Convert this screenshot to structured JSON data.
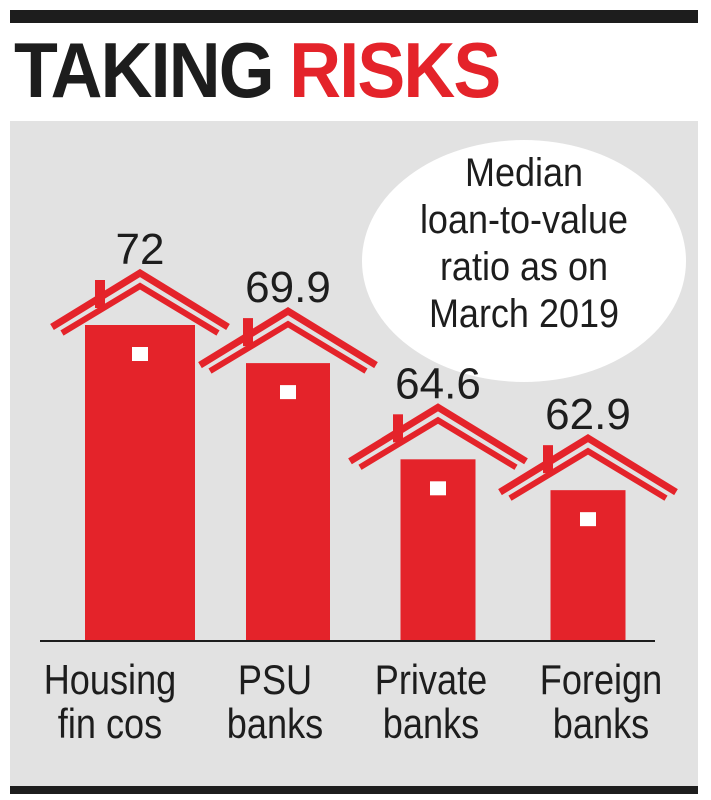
{
  "header": {
    "title_part1": "TAKING",
    "title_part2": "RISKS"
  },
  "callout": {
    "lines": [
      "Median",
      "loan-to-value",
      "ratio as on",
      "March 2019"
    ]
  },
  "colors": {
    "accent": "#e4232a",
    "text": "#1d1d1d",
    "panel": "#e2e2e2",
    "window": "#ffffff"
  },
  "chart_data": {
    "type": "bar",
    "title": "",
    "categories": [
      [
        "Housing",
        "fin cos"
      ],
      [
        "PSU",
        "banks"
      ],
      [
        "Private",
        "banks"
      ],
      [
        "Foreign",
        "banks"
      ]
    ],
    "values": [
      72,
      69.9,
      64.6,
      62.9
    ],
    "value_labels": [
      "72",
      "69.9",
      "64.6",
      "62.9"
    ],
    "grid": false,
    "bar_shape": "house"
  }
}
